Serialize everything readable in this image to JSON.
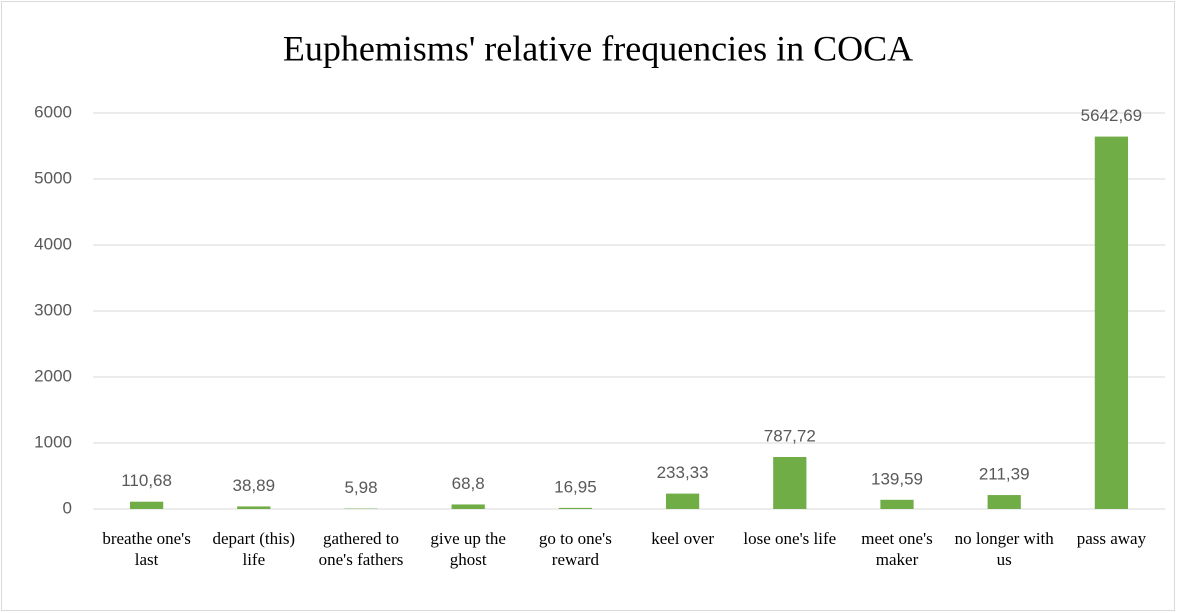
{
  "chart_data": {
    "type": "bar",
    "title": "Euphemisms' relative frequencies in COCA",
    "categories": [
      "breathe one's last",
      "depart (this) life",
      "gathered to one's fathers",
      "give up the ghost",
      "go to one's reward",
      "keel over",
      "lose one's life",
      "meet one's maker",
      "no longer with us",
      "pass away"
    ],
    "values": [
      110.68,
      38.89,
      5.98,
      68.8,
      16.95,
      233.33,
      787.72,
      139.59,
      211.39,
      5642.69
    ],
    "value_labels": [
      "110,68",
      "38,89",
      "5,98",
      "68,8",
      "16,95",
      "233,33",
      "787,72",
      "139,59",
      "211,39",
      "5642,69"
    ],
    "color": "#70ad47",
    "ylim": [
      0,
      6000
    ],
    "yticks": [
      0,
      1000,
      2000,
      3000,
      4000,
      5000,
      6000
    ],
    "grid": true
  }
}
